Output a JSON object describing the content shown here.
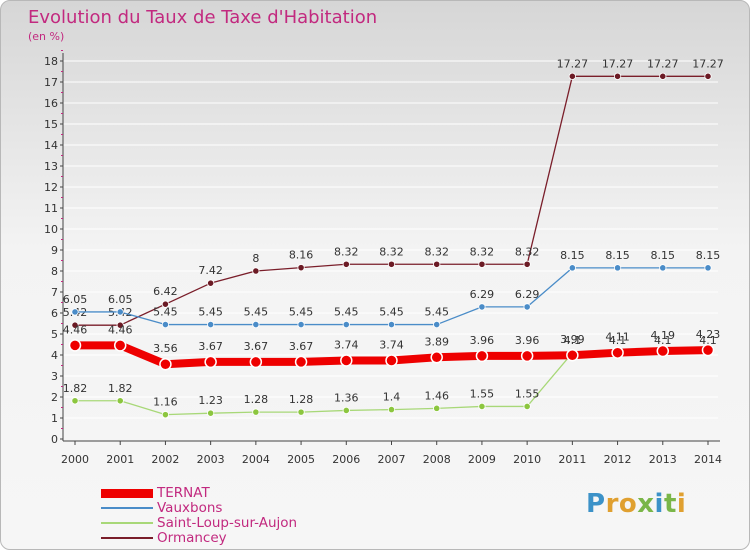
{
  "title": "Evolution du Taux de Taxe d'Habitation",
  "unit": "(en %)",
  "logo": {
    "letters": [
      "P",
      "r",
      "o",
      "x",
      "i",
      "t",
      "i"
    ],
    "colors": [
      "#3c92c8",
      "#e0a030",
      "#e0a030",
      "#7ab648",
      "#3c92c8",
      "#7ab648",
      "#e0a030"
    ]
  },
  "chart_data": {
    "type": "line",
    "title": "Evolution du Taux de Taxe d'Habitation",
    "ylabel": "(en %)",
    "xlabel": "",
    "x": [
      "2000",
      "2001",
      "2002",
      "2003",
      "2004",
      "2005",
      "2006",
      "2007",
      "2008",
      "2009",
      "2010",
      "2011",
      "2012",
      "2013",
      "2014"
    ],
    "ylim": [
      0,
      18
    ],
    "yticks": [
      "0",
      "1",
      "2",
      "3",
      "4",
      "5",
      "6",
      "7",
      "8",
      "9",
      "10",
      "11",
      "12",
      "13",
      "14",
      "15",
      "16",
      "17",
      "18"
    ],
    "legend_position": "bottom-left",
    "series": [
      {
        "name": "Ormancey",
        "color": "#7a1e2a",
        "marker_fill": "#6b1a24",
        "width": 1.3,
        "label_offset": -9,
        "values": [
          5.42,
          5.42,
          6.42,
          7.42,
          8,
          8.16,
          8.32,
          8.32,
          8.32,
          8.32,
          8.32,
          17.27,
          17.27,
          17.27,
          17.27
        ],
        "labels": [
          "5.42",
          "5.42",
          "6.42",
          "7.42",
          "8",
          "8.16",
          "8.32",
          "8.32",
          "8.32",
          "8.32",
          "8.32",
          "17.27",
          "17.27",
          "17.27",
          "17.27"
        ]
      },
      {
        "name": "Vauxbons",
        "color": "#4a8cc8",
        "marker_fill": "#4a8cc8",
        "width": 1.3,
        "label_offset": -9,
        "values": [
          6.05,
          6.05,
          5.45,
          5.45,
          5.45,
          5.45,
          5.45,
          5.45,
          5.45,
          6.29,
          6.29,
          8.15,
          8.15,
          8.15,
          8.15
        ],
        "labels": [
          "6.05",
          "6.05",
          "5.45",
          "5.45",
          "5.45",
          "5.45",
          "5.45",
          "5.45",
          "5.45",
          "6.29",
          "6.29",
          "8.15",
          "8.15",
          "8.15",
          "8.15"
        ]
      },
      {
        "name": "Saint-Loup-sur-Aujon",
        "color": "#a8d878",
        "marker_fill": "#8cc63f",
        "width": 1.3,
        "label_offset": -9,
        "values": [
          1.82,
          1.82,
          1.16,
          1.23,
          1.28,
          1.28,
          1.36,
          1.4,
          1.46,
          1.55,
          1.55,
          4.1,
          4.1,
          4.1,
          4.1
        ],
        "labels": [
          "1.82",
          "1.82",
          "1.16",
          "1.23",
          "1.28",
          "1.28",
          "1.36",
          "1.4",
          "1.46",
          "1.55",
          "1.55",
          "4.1",
          "4.1",
          "4.1",
          "4.1"
        ]
      },
      {
        "name": "TERNAT",
        "color": "#ee0000",
        "marker_fill": "#ee0000",
        "width": 8,
        "label_offset": -12,
        "values": [
          4.46,
          4.46,
          3.56,
          3.67,
          3.67,
          3.67,
          3.74,
          3.74,
          3.89,
          3.96,
          3.96,
          3.99,
          4.11,
          4.19,
          4.23
        ],
        "labels": [
          "4.46",
          "4.46",
          "3.56",
          "3.67",
          "3.67",
          "3.67",
          "3.74",
          "3.74",
          "3.89",
          "3.96",
          "3.96",
          "3.99",
          "4.11",
          "4.19",
          "4.23"
        ]
      }
    ],
    "legend_order": [
      "TERNAT",
      "Vauxbons",
      "Saint-Loup-sur-Aujon",
      "Ormancey"
    ]
  }
}
